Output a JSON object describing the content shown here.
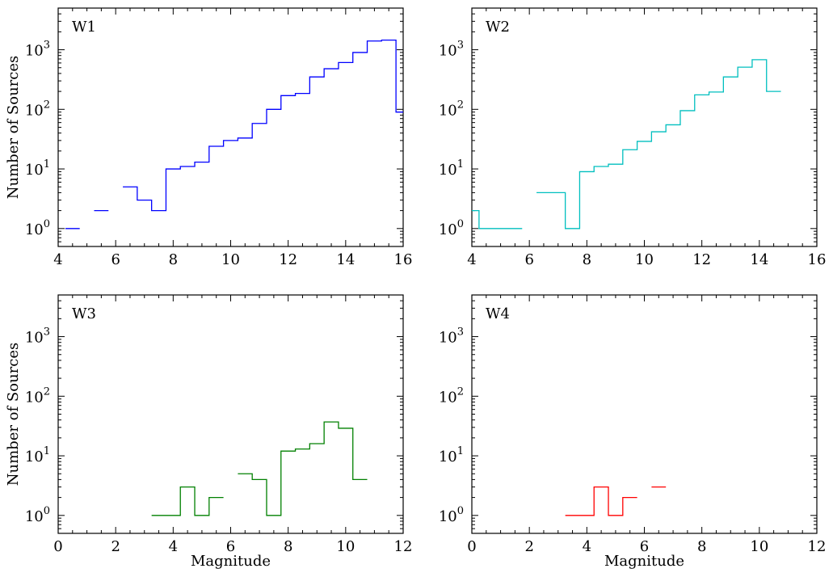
{
  "chart_data": [
    {
      "type": "histogram",
      "label": "W1",
      "color": "#0000ff",
      "ylabel": "Number of Sources",
      "xlabel": "",
      "xlim": [
        4,
        16
      ],
      "ylim": [
        0.5,
        5000
      ],
      "yscale": "log",
      "xticks": [
        4,
        6,
        8,
        10,
        12,
        14,
        16
      ],
      "yticks": [
        {
          "value": 1,
          "base": "10",
          "exp": "0"
        },
        {
          "value": 10,
          "base": "10",
          "exp": "1"
        },
        {
          "value": 100,
          "base": "10",
          "exp": "2"
        },
        {
          "value": 1000,
          "base": "10",
          "exp": "3"
        }
      ],
      "bins": [
        {
          "x0": 4.25,
          "x1": 4.75,
          "count": 1
        },
        {
          "x0": 5.25,
          "x1": 5.75,
          "count": 2
        },
        {
          "x0": 6.25,
          "x1": 6.75,
          "count": 5
        },
        {
          "x0": 6.75,
          "x1": 7.25,
          "count": 3
        },
        {
          "x0": 7.25,
          "x1": 7.75,
          "count": 2
        },
        {
          "x0": 7.75,
          "x1": 8.25,
          "count": 10
        },
        {
          "x0": 8.25,
          "x1": 8.75,
          "count": 11
        },
        {
          "x0": 8.75,
          "x1": 9.25,
          "count": 13
        },
        {
          "x0": 9.25,
          "x1": 9.75,
          "count": 24
        },
        {
          "x0": 9.75,
          "x1": 10.25,
          "count": 30
        },
        {
          "x0": 10.25,
          "x1": 10.75,
          "count": 33
        },
        {
          "x0": 10.75,
          "x1": 11.25,
          "count": 58
        },
        {
          "x0": 11.25,
          "x1": 11.75,
          "count": 100
        },
        {
          "x0": 11.75,
          "x1": 12.25,
          "count": 170
        },
        {
          "x0": 12.25,
          "x1": 12.75,
          "count": 185
        },
        {
          "x0": 12.75,
          "x1": 13.25,
          "count": 350
        },
        {
          "x0": 13.25,
          "x1": 13.75,
          "count": 480
        },
        {
          "x0": 13.75,
          "x1": 14.25,
          "count": 610
        },
        {
          "x0": 14.25,
          "x1": 14.75,
          "count": 900
        },
        {
          "x0": 14.75,
          "x1": 15.25,
          "count": 1400
        },
        {
          "x0": 15.25,
          "x1": 15.75,
          "count": 1450
        },
        {
          "x0": 15.75,
          "x1": 16.25,
          "count": 90
        }
      ]
    },
    {
      "type": "histogram",
      "label": "W2",
      "color": "#00bfbf",
      "ylabel": "",
      "xlabel": "",
      "xlim": [
        4,
        16
      ],
      "ylim": [
        0.5,
        5000
      ],
      "yscale": "log",
      "xticks": [
        4,
        6,
        8,
        10,
        12,
        14,
        16
      ],
      "yticks": [
        {
          "value": 1,
          "base": "10",
          "exp": "0"
        },
        {
          "value": 10,
          "base": "10",
          "exp": "1"
        },
        {
          "value": 100,
          "base": "10",
          "exp": "2"
        },
        {
          "value": 1000,
          "base": "10",
          "exp": "3"
        }
      ],
      "bins": [
        {
          "x0": 3.75,
          "x1": 4.25,
          "count": 2
        },
        {
          "x0": 4.25,
          "x1": 4.75,
          "count": 1
        },
        {
          "x0": 4.75,
          "x1": 5.25,
          "count": 1
        },
        {
          "x0": 5.25,
          "x1": 5.75,
          "count": 1
        },
        {
          "x0": 6.25,
          "x1": 6.75,
          "count": 4
        },
        {
          "x0": 6.75,
          "x1": 7.25,
          "count": 4
        },
        {
          "x0": 7.25,
          "x1": 7.75,
          "count": 1
        },
        {
          "x0": 7.75,
          "x1": 8.25,
          "count": 9
        },
        {
          "x0": 8.25,
          "x1": 8.75,
          "count": 11
        },
        {
          "x0": 8.75,
          "x1": 9.25,
          "count": 12
        },
        {
          "x0": 9.25,
          "x1": 9.75,
          "count": 21
        },
        {
          "x0": 9.75,
          "x1": 10.25,
          "count": 29
        },
        {
          "x0": 10.25,
          "x1": 10.75,
          "count": 42
        },
        {
          "x0": 10.75,
          "x1": 11.25,
          "count": 55
        },
        {
          "x0": 11.25,
          "x1": 11.75,
          "count": 95
        },
        {
          "x0": 11.75,
          "x1": 12.25,
          "count": 175
        },
        {
          "x0": 12.25,
          "x1": 12.75,
          "count": 195
        },
        {
          "x0": 12.75,
          "x1": 13.25,
          "count": 350
        },
        {
          "x0": 13.25,
          "x1": 13.75,
          "count": 510
        },
        {
          "x0": 13.75,
          "x1": 14.25,
          "count": 680
        },
        {
          "x0": 14.25,
          "x1": 14.75,
          "count": 200
        }
      ]
    },
    {
      "type": "histogram",
      "label": "W3",
      "color": "#008000",
      "ylabel": "Number of Sources",
      "xlabel": "Magnitude",
      "xlim": [
        0,
        12
      ],
      "ylim": [
        0.5,
        5000
      ],
      "yscale": "log",
      "xticks": [
        0,
        2,
        4,
        6,
        8,
        10,
        12
      ],
      "yticks": [
        {
          "value": 1,
          "base": "10",
          "exp": "0"
        },
        {
          "value": 10,
          "base": "10",
          "exp": "1"
        },
        {
          "value": 100,
          "base": "10",
          "exp": "2"
        },
        {
          "value": 1000,
          "base": "10",
          "exp": "3"
        }
      ],
      "bins": [
        {
          "x0": 3.25,
          "x1": 3.75,
          "count": 1
        },
        {
          "x0": 3.75,
          "x1": 4.25,
          "count": 1
        },
        {
          "x0": 4.25,
          "x1": 4.75,
          "count": 3
        },
        {
          "x0": 4.75,
          "x1": 5.25,
          "count": 1
        },
        {
          "x0": 5.25,
          "x1": 5.75,
          "count": 2
        },
        {
          "x0": 6.25,
          "x1": 6.75,
          "count": 5
        },
        {
          "x0": 6.75,
          "x1": 7.25,
          "count": 4
        },
        {
          "x0": 7.25,
          "x1": 7.75,
          "count": 1
        },
        {
          "x0": 7.75,
          "x1": 8.25,
          "count": 12
        },
        {
          "x0": 8.25,
          "x1": 8.75,
          "count": 13
        },
        {
          "x0": 8.75,
          "x1": 9.25,
          "count": 16
        },
        {
          "x0": 9.25,
          "x1": 9.75,
          "count": 37
        },
        {
          "x0": 9.75,
          "x1": 10.25,
          "count": 29
        },
        {
          "x0": 10.25,
          "x1": 10.75,
          "count": 4
        }
      ]
    },
    {
      "type": "histogram",
      "label": "W4",
      "color": "#ff0000",
      "ylabel": "",
      "xlabel": "Magnitude",
      "xlim": [
        0,
        12
      ],
      "ylim": [
        0.5,
        5000
      ],
      "yscale": "log",
      "xticks": [
        0,
        2,
        4,
        6,
        8,
        10,
        12
      ],
      "yticks": [
        {
          "value": 1,
          "base": "10",
          "exp": "0"
        },
        {
          "value": 10,
          "base": "10",
          "exp": "1"
        },
        {
          "value": 100,
          "base": "10",
          "exp": "2"
        },
        {
          "value": 1000,
          "base": "10",
          "exp": "3"
        }
      ],
      "bins": [
        {
          "x0": 3.25,
          "x1": 3.75,
          "count": 1
        },
        {
          "x0": 3.75,
          "x1": 4.25,
          "count": 1
        },
        {
          "x0": 4.25,
          "x1": 4.75,
          "count": 3
        },
        {
          "x0": 4.75,
          "x1": 5.25,
          "count": 1
        },
        {
          "x0": 5.25,
          "x1": 5.75,
          "count": 2
        },
        {
          "x0": 6.25,
          "x1": 6.75,
          "count": 3
        }
      ]
    }
  ]
}
